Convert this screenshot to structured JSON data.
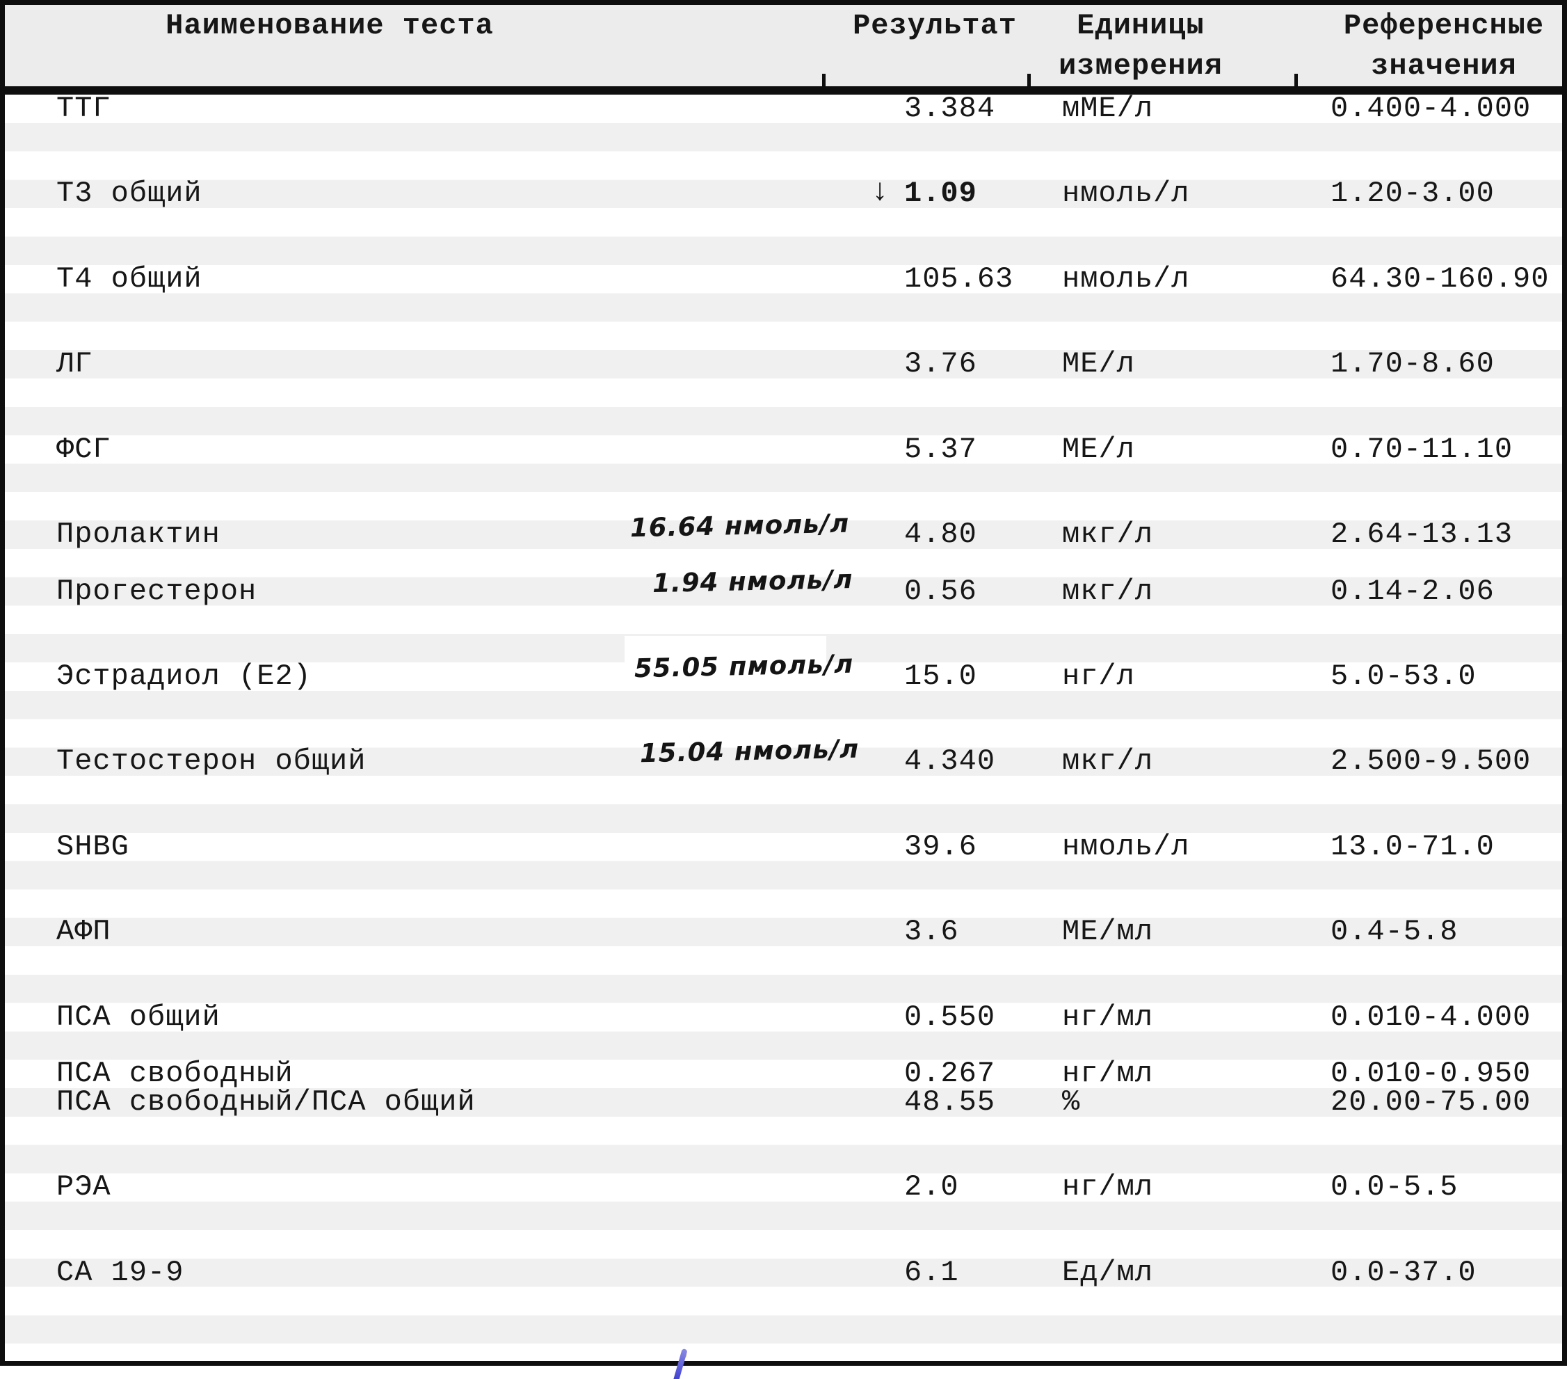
{
  "table": {
    "headers": {
      "test": "Наименование теста",
      "result": "Результат",
      "units_line1": "Единицы",
      "units_line2": "измерения",
      "ref_line1": "Референсные",
      "ref_line2": "значения"
    },
    "rows": [
      {
        "name": "ТТГ",
        "result": "3.384",
        "unit": "мМЕ/л",
        "ref": "0.400-4.000"
      },
      {
        "name": "Т3 общий",
        "result": "1.09",
        "unit": "нмоль/л",
        "ref": "1.20-3.00",
        "flag": "low",
        "flag_icon": "↓"
      },
      {
        "name": "Т4 общий",
        "result": "105.63",
        "unit": "нмоль/л",
        "ref": "64.30-160.90"
      },
      {
        "name": "ЛГ",
        "result": "3.76",
        "unit": "МЕ/л",
        "ref": "1.70-8.60"
      },
      {
        "name": "ФСГ",
        "result": "5.37",
        "unit": "МЕ/л",
        "ref": "0.70-11.10"
      },
      {
        "name": "Пролактин",
        "result": "4.80",
        "unit": "мкг/л",
        "ref": "2.64-13.13",
        "annotation": "16.64 нмоль/л"
      },
      {
        "name": "Прогестерон",
        "result": "0.56",
        "unit": "мкг/л",
        "ref": "0.14-2.06",
        "annotation": "1.94 нмоль/л"
      },
      {
        "name": "Эстрадиол (Е2)",
        "result": "15.0",
        "unit": "нг/л",
        "ref": "5.0-53.0",
        "annotation": "55.05 пмоль/л",
        "annotation_whiteout": true
      },
      {
        "name": "Тестостерон общий",
        "result": "4.340",
        "unit": "мкг/л",
        "ref": "2.500-9.500",
        "annotation": "15.04 нмоль/л"
      },
      {
        "name": "SHBG",
        "result": "39.6",
        "unit": "нмоль/л",
        "ref": "13.0-71.0"
      },
      {
        "name": "АФП",
        "result": "3.6",
        "unit": "МЕ/мл",
        "ref": "0.4-5.8"
      },
      {
        "name": "ПСА общий",
        "result": "0.550",
        "unit": "нг/мл",
        "ref": "0.010-4.000"
      },
      {
        "name": "ПСА свободный",
        "result": "0.267",
        "unit": "нг/мл",
        "ref": "0.010-0.950"
      },
      {
        "name": "ПСА свободный/ПСА общий",
        "result": "48.55",
        "unit": "%",
        "ref": "20.00-75.00"
      },
      {
        "name": "РЭА",
        "result": "2.0",
        "unit": "нг/мл",
        "ref": "0.0-5.5"
      },
      {
        "name": "СА 19-9",
        "result": "6.1",
        "unit": "Ед/мл",
        "ref": "0.0-37.0"
      }
    ]
  },
  "colors": {
    "stripe_gray": "#f0f0f0",
    "header_bg": "#ececec",
    "border_black": "#0e0e0e",
    "pen_blue": "#3a3ad0",
    "speck_yellow": "#efe9b0"
  }
}
